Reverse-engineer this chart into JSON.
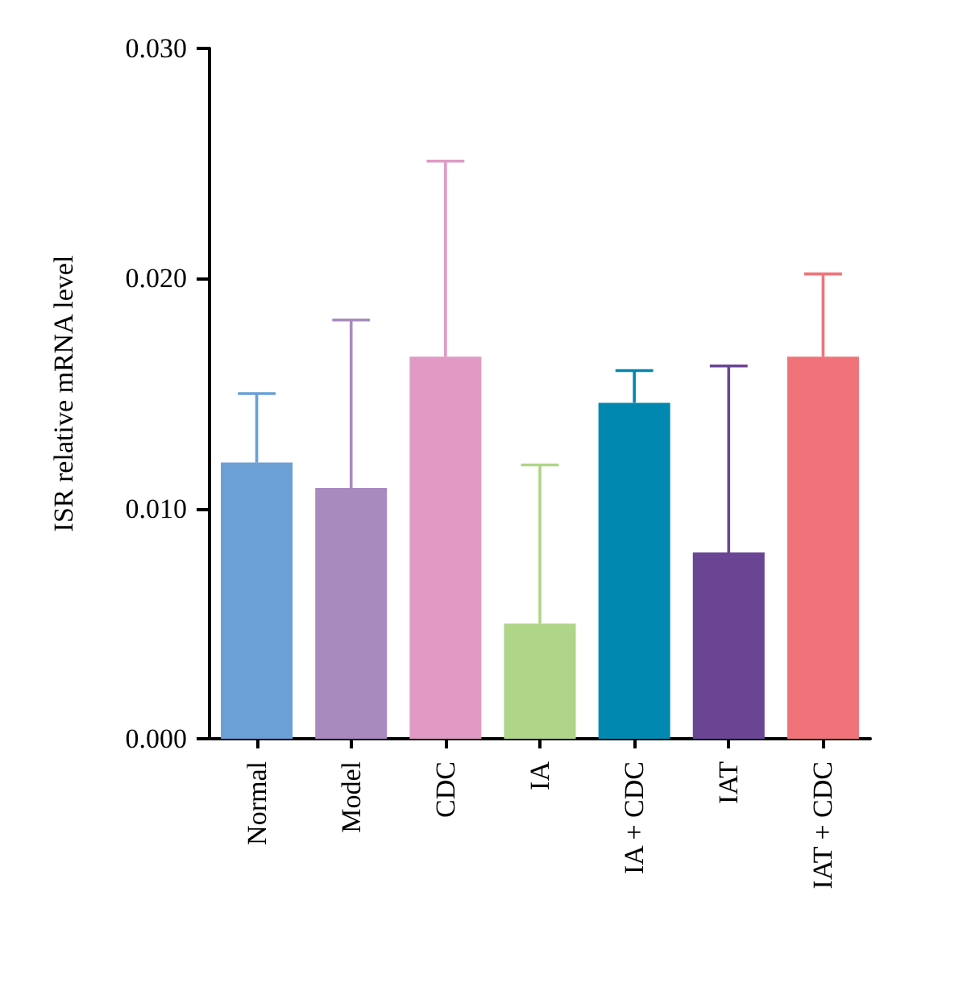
{
  "chart_data": {
    "type": "bar",
    "ylabel": "ISR relative mRNA level",
    "categories": [
      "Normal",
      "Model",
      "CDC",
      "IA",
      "IA + CDC",
      "IAT",
      "IAT + CDC"
    ],
    "values": [
      0.012,
      0.0109,
      0.0166,
      0.005,
      0.0146,
      0.0081,
      0.0166
    ],
    "errors": [
      [
        0.012,
        0.015
      ],
      [
        0.0109,
        0.0182
      ],
      [
        0.0166,
        0.0251
      ],
      [
        0.005,
        0.0119
      ],
      [
        0.0146,
        0.016
      ],
      [
        0.0081,
        0.0162
      ],
      [
        0.0166,
        0.0202
      ]
    ],
    "colors": [
      "#6aa0d6",
      "#a98abf",
      "#e09ac4",
      "#afd588",
      "#0088b0",
      "#6a4594",
      "#f0737a"
    ],
    "ylim": [
      0,
      0.03
    ],
    "yticks": [
      {
        "value": 0,
        "label": "0.000"
      },
      {
        "value": 0.01,
        "label": "0.010"
      },
      {
        "value": 0.02,
        "label": "0.020"
      },
      {
        "value": 0.03,
        "label": "0.030"
      }
    ],
    "grid": false
  }
}
